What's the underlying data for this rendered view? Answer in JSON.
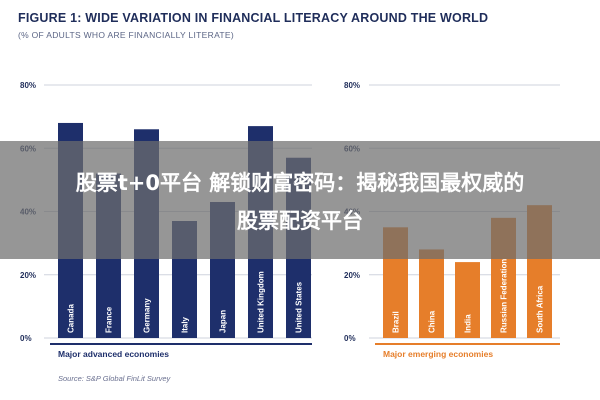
{
  "figure": {
    "title": "FIGURE 1: WIDE VARIATION IN FINANCIAL LITERACY AROUND THE WORLD",
    "subtitle": "(% OF ADULTS WHO ARE FINANCIALLY LITERATE)",
    "source": "Source: S&P Global FinLit Survey"
  },
  "overlay": {
    "line1": "股票t+0平台 解锁财富密码：揭秘我国最权威的",
    "line2": "股票配资平台"
  },
  "colors": {
    "advanced": "#1e2f6b",
    "emerging": "#e67e2a",
    "grid": "#cfd3dd",
    "text": "#1f2d5a"
  },
  "chart_data": [
    {
      "type": "bar",
      "title": "Major advanced economies",
      "categories": [
        "Canada",
        "France",
        "Germany",
        "Italy",
        "Japan",
        "United Kingdom",
        "United States"
      ],
      "values": [
        68,
        52,
        66,
        37,
        43,
        67,
        57
      ],
      "yticks": [
        "0%",
        "20%",
        "40%",
        "60%",
        "80%"
      ],
      "ylim": [
        0,
        80
      ],
      "grid": true
    },
    {
      "type": "bar",
      "title": "Major emerging economies",
      "categories": [
        "Brazil",
        "China",
        "India",
        "Russian Federation",
        "South Africa"
      ],
      "values": [
        35,
        28,
        24,
        38,
        42
      ],
      "yticks": [
        "0%",
        "20%",
        "40%",
        "60%",
        "80%"
      ],
      "ylim": [
        0,
        80
      ],
      "grid": true
    }
  ]
}
